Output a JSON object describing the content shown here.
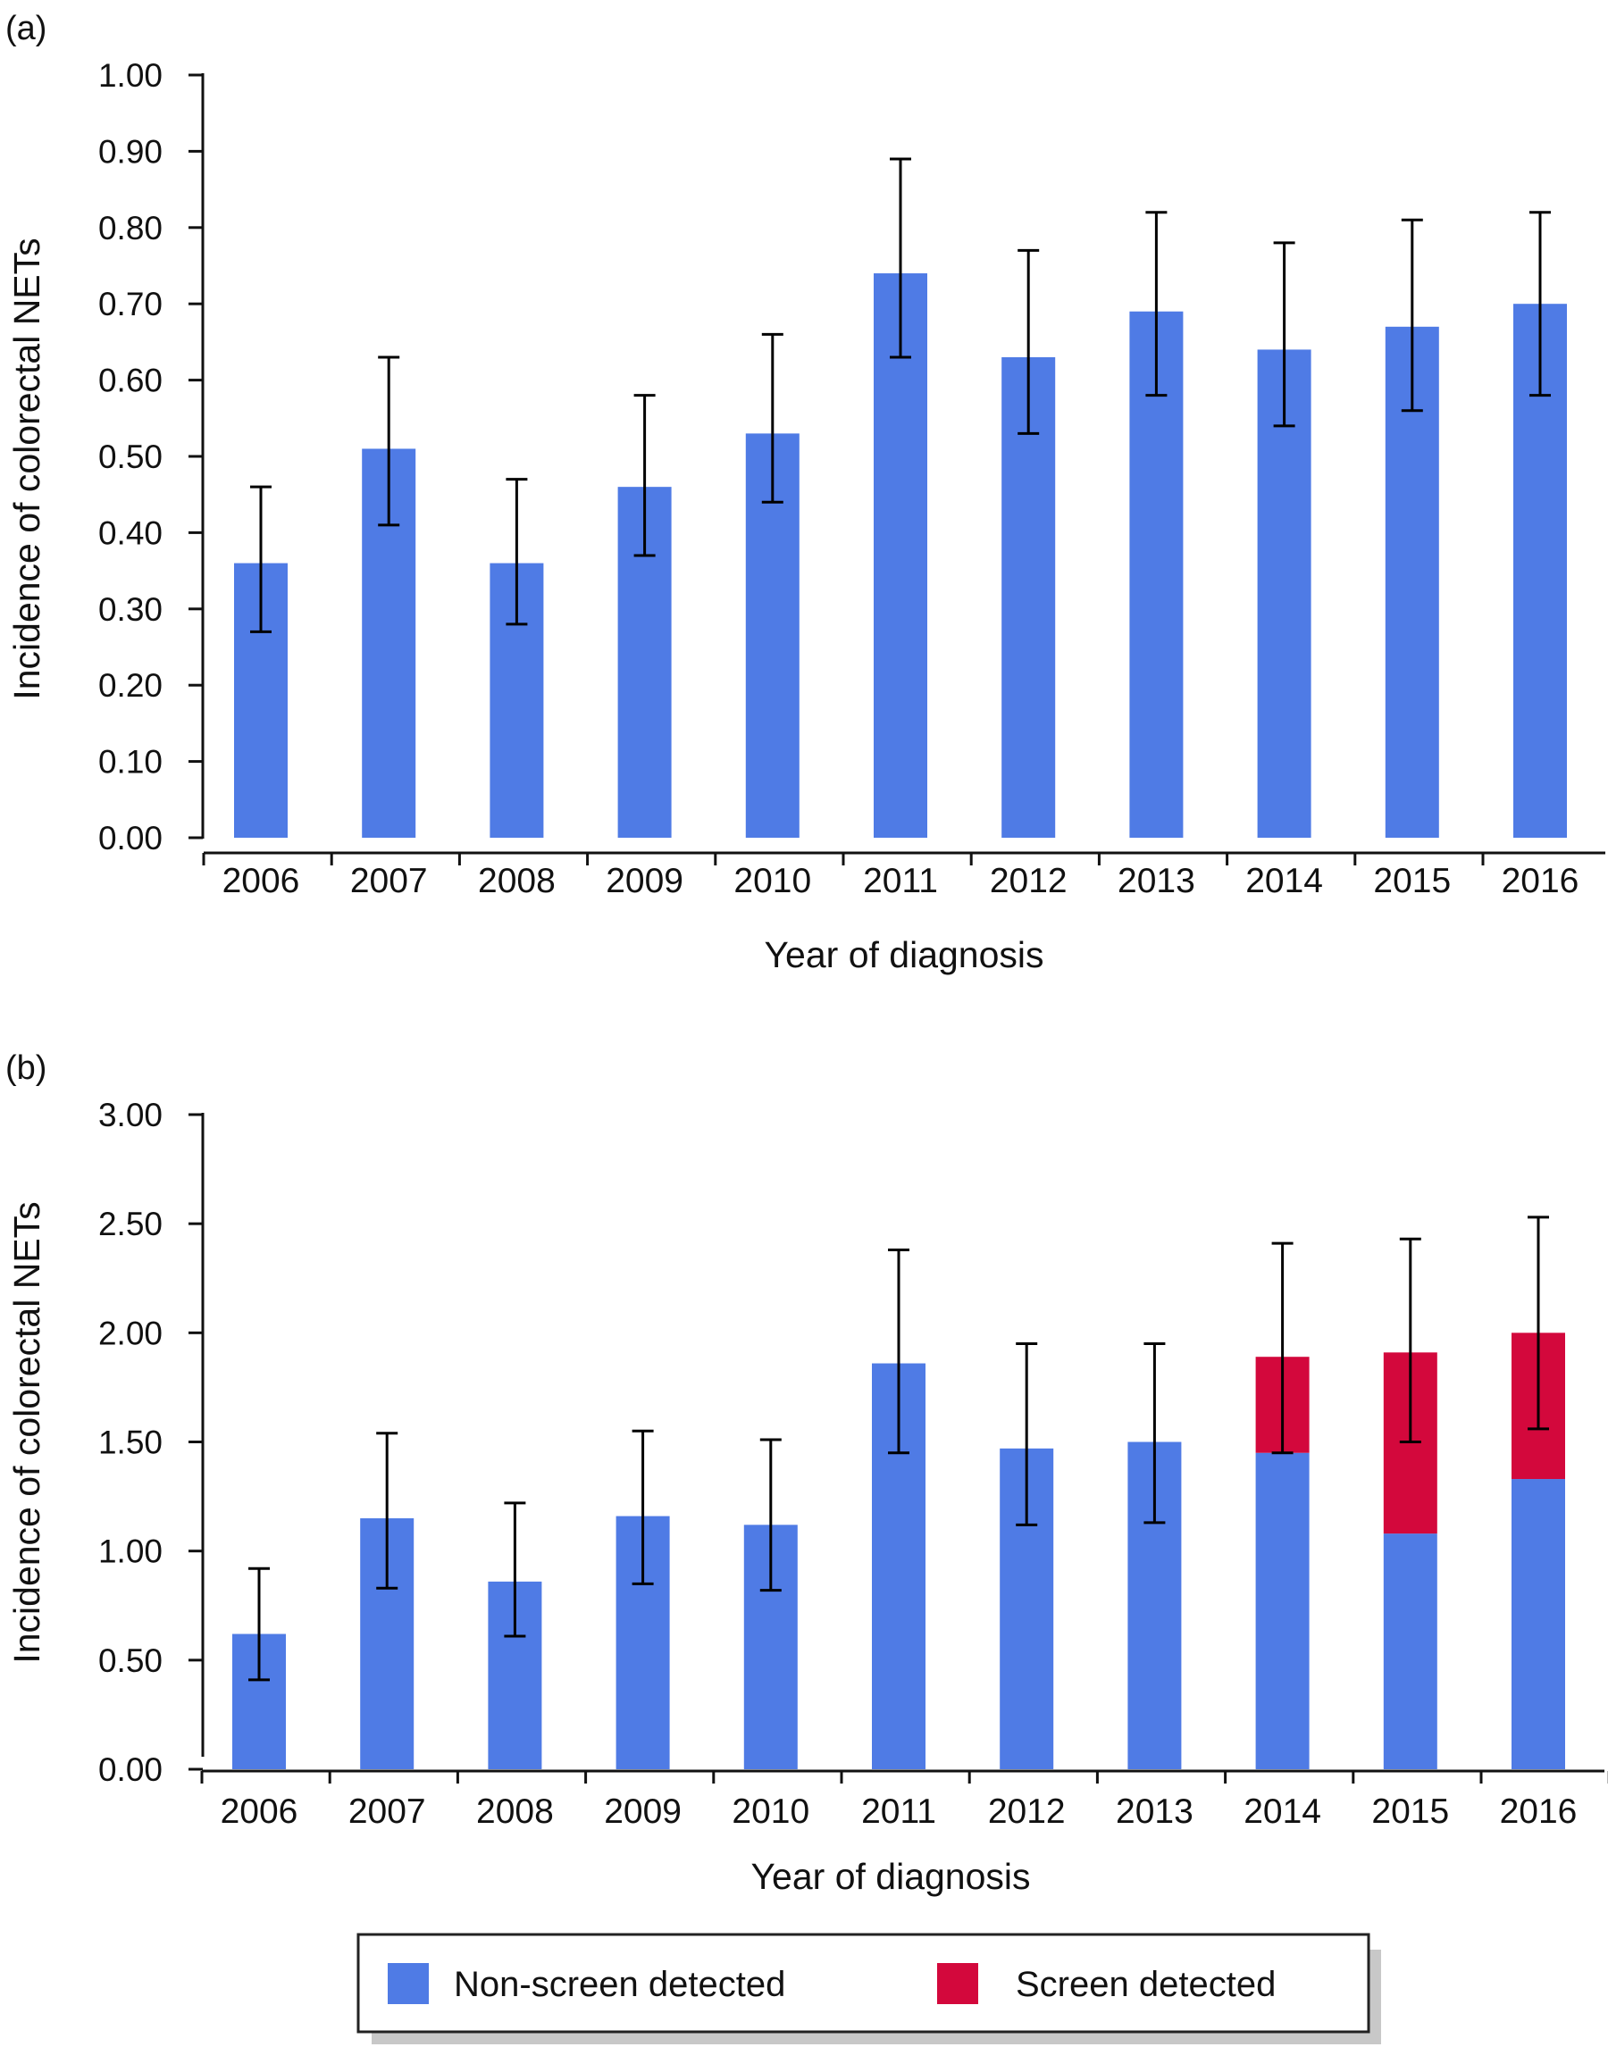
{
  "chart_data": [
    {
      "panel_label": "(a)",
      "type": "bar",
      "categories": [
        "2006",
        "2007",
        "2008",
        "2009",
        "2010",
        "2011",
        "2012",
        "2013",
        "2014",
        "2015",
        "2016"
      ],
      "series": [
        {
          "name": "Non-screen detected",
          "values": [
            0.36,
            0.51,
            0.36,
            0.46,
            0.53,
            0.74,
            0.63,
            0.69,
            0.64,
            0.67,
            0.7
          ]
        }
      ],
      "error_bars": {
        "lower": [
          0.27,
          0.41,
          0.28,
          0.37,
          0.44,
          0.63,
          0.53,
          0.58,
          0.54,
          0.56,
          0.58
        ],
        "upper": [
          0.46,
          0.63,
          0.47,
          0.58,
          0.66,
          0.89,
          0.77,
          0.82,
          0.78,
          0.81,
          0.82
        ]
      },
      "xlabel": "Year of diagnosis",
      "ylabel": "Incidence of colorectal NETs",
      "ylim": [
        0,
        1.0
      ],
      "yticks": [
        "0.00",
        "0.10",
        "0.20",
        "0.30",
        "0.40",
        "0.50",
        "0.60",
        "0.70",
        "0.80",
        "0.90",
        "1.00"
      ],
      "grid": false
    },
    {
      "panel_label": "(b)",
      "type": "bar",
      "stacked": true,
      "categories": [
        "2006",
        "2007",
        "2008",
        "2009",
        "2010",
        "2011",
        "2012",
        "2013",
        "2014",
        "2015",
        "2016"
      ],
      "series": [
        {
          "name": "Non-screen detected",
          "values": [
            0.62,
            1.15,
            0.86,
            1.16,
            1.12,
            1.86,
            1.47,
            1.5,
            1.45,
            1.08,
            1.33
          ]
        },
        {
          "name": "Screen detected",
          "values": [
            0,
            0,
            0,
            0,
            0,
            0,
            0,
            0,
            0.44,
            0.83,
            0.67
          ]
        }
      ],
      "error_bars": {
        "lower": [
          0.41,
          0.83,
          0.61,
          0.85,
          0.82,
          1.45,
          1.12,
          1.13,
          1.45,
          1.5,
          1.56
        ],
        "upper": [
          0.92,
          1.54,
          1.22,
          1.55,
          1.51,
          2.38,
          1.95,
          1.95,
          2.41,
          2.43,
          2.53
        ]
      },
      "xlabel": "Year of diagnosis",
      "ylabel": "Incidence of colorectal NETs",
      "ylim": [
        0,
        3.0
      ],
      "yticks": [
        "0.00",
        "0.50",
        "1.00",
        "1.50",
        "2.00",
        "2.50",
        "3.00"
      ],
      "grid": false
    }
  ],
  "legend": {
    "placement": "bottom-center",
    "items": [
      {
        "label": "Non-screen detected",
        "color": "#4f7be5"
      },
      {
        "label": "Screen detected",
        "color": "#d3083c"
      }
    ]
  },
  "colors": {
    "non_screen": "#4f7be5",
    "screen": "#d3083c",
    "axis": "#111111",
    "legend_shadow": "#c8c8c8"
  }
}
